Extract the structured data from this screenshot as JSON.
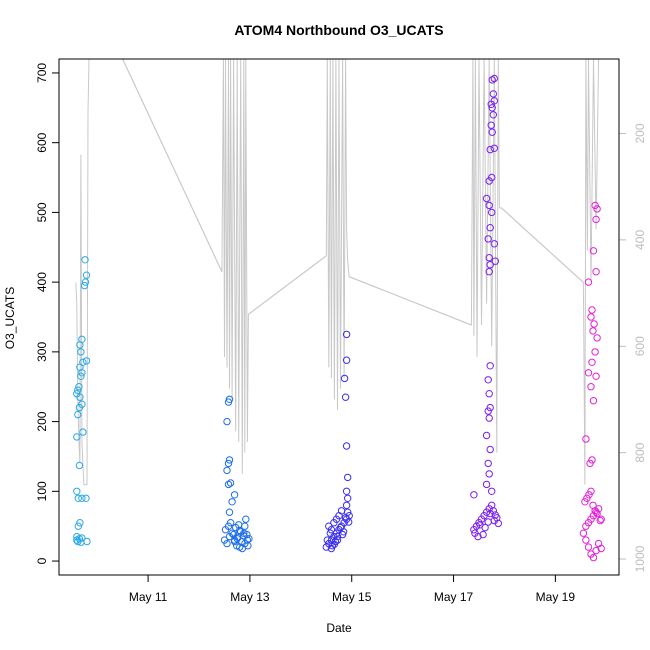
{
  "chart_data": {
    "type": "scatter",
    "title": "ATOM4 Northbound O3_UCATS",
    "xlabel": "Date",
    "ylabel": "O3_UCATS",
    "x_axis": {
      "min_day": 9.25,
      "max_day": 20.25,
      "ticks": [
        {
          "day": 11,
          "label": "May 11"
        },
        {
          "day": 13,
          "label": "May 13"
        },
        {
          "day": 15,
          "label": "May 15"
        },
        {
          "day": 17,
          "label": "May 17"
        },
        {
          "day": 19,
          "label": "May 19"
        }
      ]
    },
    "y_axis": {
      "min": -20,
      "max": 720,
      "ticks": [
        0,
        100,
        200,
        300,
        400,
        500,
        600,
        700
      ]
    },
    "y2_axis": {
      "top": 60,
      "bottom": 1030,
      "ticks": [
        200,
        400,
        600,
        800,
        1000
      ],
      "color": "#bdbdbd"
    },
    "grid": false,
    "legend": "none",
    "series": [
      {
        "color": "#29a9e8",
        "points": [
          [
            9.6,
            30
          ],
          [
            9.62,
            28
          ],
          [
            9.65,
            32
          ],
          [
            9.6,
            35
          ],
          [
            9.68,
            27
          ],
          [
            9.7,
            33
          ],
          [
            9.63,
            50
          ],
          [
            9.66,
            55
          ],
          [
            9.6,
            100
          ],
          [
            9.63,
            90
          ],
          [
            9.7,
            90
          ],
          [
            9.78,
            90
          ],
          [
            9.8,
            28
          ],
          [
            9.65,
            137
          ],
          [
            9.6,
            178
          ],
          [
            9.72,
            185
          ],
          [
            9.62,
            210
          ],
          [
            9.65,
            220
          ],
          [
            9.7,
            225
          ],
          [
            9.66,
            235
          ],
          [
            9.6,
            240
          ],
          [
            9.62,
            245
          ],
          [
            9.64,
            250
          ],
          [
            9.68,
            265
          ],
          [
            9.7,
            270
          ],
          [
            9.66,
            278
          ],
          [
            9.72,
            285
          ],
          [
            9.79,
            287
          ],
          [
            9.68,
            300
          ],
          [
            9.66,
            310
          ],
          [
            9.7,
            318
          ],
          [
            9.75,
            395
          ],
          [
            9.77,
            400
          ],
          [
            9.79,
            410
          ],
          [
            9.76,
            432
          ]
        ]
      },
      {
        "color": "#1e6ee8",
        "points": [
          [
            12.5,
            30
          ],
          [
            12.55,
            25
          ],
          [
            12.6,
            35
          ],
          [
            12.65,
            40
          ],
          [
            12.7,
            28
          ],
          [
            12.75,
            32
          ],
          [
            12.8,
            20
          ],
          [
            12.85,
            18
          ],
          [
            12.9,
            25
          ],
          [
            12.95,
            30
          ],
          [
            12.52,
            45
          ],
          [
            12.58,
            50
          ],
          [
            12.62,
            55
          ],
          [
            12.68,
            38
          ],
          [
            12.72,
            48
          ],
          [
            12.78,
            52
          ],
          [
            12.82,
            42
          ],
          [
            12.88,
            36
          ],
          [
            12.92,
            60
          ],
          [
            12.6,
            70
          ],
          [
            12.65,
            85
          ],
          [
            12.7,
            95
          ],
          [
            12.58,
            110
          ],
          [
            12.62,
            112
          ],
          [
            12.55,
            130
          ],
          [
            12.58,
            140
          ],
          [
            12.6,
            145
          ],
          [
            12.55,
            200
          ],
          [
            12.58,
            228
          ],
          [
            12.6,
            232
          ],
          [
            12.7,
            30
          ],
          [
            12.74,
            22
          ],
          [
            12.76,
            34
          ],
          [
            12.8,
            44
          ],
          [
            12.84,
            28
          ],
          [
            12.88,
            40
          ],
          [
            12.9,
            50
          ],
          [
            12.94,
            38
          ],
          [
            12.96,
            22
          ],
          [
            12.98,
            32
          ]
        ]
      },
      {
        "color": "#3b2ff0",
        "points": [
          [
            14.5,
            20
          ],
          [
            14.55,
            25
          ],
          [
            14.6,
            30
          ],
          [
            14.65,
            35
          ],
          [
            14.7,
            40
          ],
          [
            14.75,
            45
          ],
          [
            14.8,
            50
          ],
          [
            14.85,
            55
          ],
          [
            14.9,
            60
          ],
          [
            14.95,
            65
          ],
          [
            14.52,
            30
          ],
          [
            14.58,
            40
          ],
          [
            14.62,
            22
          ],
          [
            14.68,
            28
          ],
          [
            14.72,
            35
          ],
          [
            14.78,
            48
          ],
          [
            14.82,
            38
          ],
          [
            14.88,
            62
          ],
          [
            14.92,
            70
          ],
          [
            14.55,
            50
          ],
          [
            14.6,
            45
          ],
          [
            14.65,
            55
          ],
          [
            14.7,
            60
          ],
          [
            14.75,
            65
          ],
          [
            14.8,
            72
          ],
          [
            14.9,
            80
          ],
          [
            14.92,
            90
          ],
          [
            14.9,
            100
          ],
          [
            14.92,
            120
          ],
          [
            14.9,
            165
          ],
          [
            14.88,
            235
          ],
          [
            14.86,
            262
          ],
          [
            14.9,
            288
          ],
          [
            14.9,
            325
          ],
          [
            14.6,
            18
          ],
          [
            14.66,
            24
          ],
          [
            14.72,
            30
          ],
          [
            14.84,
            42
          ],
          [
            14.94,
            56
          ]
        ]
      },
      {
        "color": "#7a1ef0",
        "points": [
          [
            17.4,
            45
          ],
          [
            17.45,
            50
          ],
          [
            17.5,
            55
          ],
          [
            17.55,
            60
          ],
          [
            17.6,
            65
          ],
          [
            17.65,
            70
          ],
          [
            17.7,
            75
          ],
          [
            17.75,
            80
          ],
          [
            17.8,
            58
          ],
          [
            17.85,
            62
          ],
          [
            17.42,
            40
          ],
          [
            17.48,
            35
          ],
          [
            17.52,
            52
          ],
          [
            17.58,
            38
          ],
          [
            17.62,
            48
          ],
          [
            17.68,
            56
          ],
          [
            17.72,
            68
          ],
          [
            17.78,
            72
          ],
          [
            17.82,
            66
          ],
          [
            17.88,
            54
          ],
          [
            17.4,
            95
          ],
          [
            17.75,
            100
          ],
          [
            17.65,
            110
          ],
          [
            17.7,
            125
          ],
          [
            17.68,
            140
          ],
          [
            17.72,
            160
          ],
          [
            17.65,
            180
          ],
          [
            17.7,
            205
          ],
          [
            17.68,
            215
          ],
          [
            17.72,
            220
          ],
          [
            17.7,
            240
          ],
          [
            17.68,
            260
          ],
          [
            17.72,
            280
          ],
          [
            17.7,
            415
          ],
          [
            17.72,
            425
          ],
          [
            17.7,
            435
          ],
          [
            17.82,
            430
          ],
          [
            17.8,
            455
          ],
          [
            17.68,
            462
          ],
          [
            17.72,
            478
          ],
          [
            17.75,
            500
          ],
          [
            17.7,
            510
          ],
          [
            17.65,
            520
          ],
          [
            17.7,
            545
          ],
          [
            17.75,
            550
          ],
          [
            17.72,
            590
          ],
          [
            17.8,
            592
          ],
          [
            17.76,
            615
          ],
          [
            17.74,
            625
          ],
          [
            17.78,
            640
          ],
          [
            17.76,
            650
          ],
          [
            17.74,
            655
          ],
          [
            17.8,
            660
          ],
          [
            17.78,
            670
          ],
          [
            17.76,
            690
          ],
          [
            17.8,
            692
          ]
        ]
      },
      {
        "color": "#e620d8",
        "points": [
          [
            19.55,
            40
          ],
          [
            19.6,
            50
          ],
          [
            19.65,
            55
          ],
          [
            19.7,
            60
          ],
          [
            19.75,
            65
          ],
          [
            19.8,
            70
          ],
          [
            19.85,
            75
          ],
          [
            19.9,
            60
          ],
          [
            19.58,
            85
          ],
          [
            19.62,
            90
          ],
          [
            19.66,
            95
          ],
          [
            19.7,
            100
          ],
          [
            19.74,
            80
          ],
          [
            19.78,
            72
          ],
          [
            19.82,
            68
          ],
          [
            19.88,
            58
          ],
          [
            19.6,
            30
          ],
          [
            19.65,
            20
          ],
          [
            19.7,
            10
          ],
          [
            19.75,
            5
          ],
          [
            19.8,
            15
          ],
          [
            19.85,
            25
          ],
          [
            19.9,
            18
          ],
          [
            19.68,
            140
          ],
          [
            19.72,
            145
          ],
          [
            19.6,
            175
          ],
          [
            19.75,
            230
          ],
          [
            19.7,
            250
          ],
          [
            19.8,
            265
          ],
          [
            19.65,
            270
          ],
          [
            19.72,
            285
          ],
          [
            19.78,
            300
          ],
          [
            19.82,
            320
          ],
          [
            19.74,
            330
          ],
          [
            19.76,
            340
          ],
          [
            19.7,
            350
          ],
          [
            19.72,
            360
          ],
          [
            19.65,
            400
          ],
          [
            19.8,
            415
          ],
          [
            19.75,
            445
          ],
          [
            19.8,
            490
          ],
          [
            19.82,
            505
          ],
          [
            19.78,
            510
          ]
        ]
      }
    ],
    "pressure_trace": {
      "color": "#c8c8c8",
      "points": [
        [
          9.58,
          480
        ],
        [
          9.6,
          520
        ],
        [
          9.62,
          700
        ],
        [
          9.64,
          780
        ],
        [
          9.66,
          820
        ],
        [
          9.68,
          240
        ],
        [
          9.7,
          780
        ],
        [
          9.74,
          860
        ],
        [
          9.78,
          860
        ],
        [
          9.8,
          860
        ],
        [
          9.82,
          160
        ],
        [
          9.84,
          60
        ],
        [
          9.88,
          60
        ],
        [
          9.92,
          60
        ],
        [
          10.5,
          60
        ],
        [
          12.45,
          460
        ],
        [
          12.48,
          60
        ],
        [
          12.5,
          620
        ],
        [
          12.52,
          60
        ],
        [
          12.55,
          640
        ],
        [
          12.58,
          60
        ],
        [
          12.6,
          680
        ],
        [
          12.62,
          60
        ],
        [
          12.65,
          700
        ],
        [
          12.68,
          60
        ],
        [
          12.72,
          760
        ],
        [
          12.75,
          60
        ],
        [
          12.78,
          780
        ],
        [
          12.82,
          60
        ],
        [
          12.85,
          840
        ],
        [
          12.88,
          60
        ],
        [
          12.9,
          800
        ],
        [
          12.92,
          60
        ],
        [
          12.95,
          780
        ],
        [
          12.97,
          540
        ],
        [
          14.5,
          430
        ],
        [
          14.52,
          60
        ],
        [
          14.55,
          640
        ],
        [
          14.58,
          60
        ],
        [
          14.6,
          660
        ],
        [
          14.63,
          60
        ],
        [
          14.66,
          700
        ],
        [
          14.69,
          60
        ],
        [
          14.72,
          720
        ],
        [
          14.75,
          60
        ],
        [
          14.78,
          680
        ],
        [
          14.82,
          60
        ],
        [
          14.85,
          660
        ],
        [
          14.88,
          60
        ],
        [
          14.9,
          380
        ],
        [
          14.92,
          440
        ],
        [
          14.95,
          470
        ],
        [
          14.97,
          470
        ],
        [
          17.35,
          560
        ],
        [
          17.38,
          60
        ],
        [
          17.4,
          580
        ],
        [
          17.43,
          60
        ],
        [
          17.46,
          620
        ],
        [
          17.5,
          60
        ],
        [
          17.55,
          560
        ],
        [
          17.6,
          60
        ],
        [
          17.65,
          520
        ],
        [
          17.7,
          60
        ],
        [
          17.75,
          600
        ],
        [
          17.8,
          60
        ],
        [
          17.85,
          800
        ],
        [
          17.88,
          60
        ],
        [
          17.9,
          340
        ],
        [
          17.94,
          340
        ],
        [
          19.55,
          480
        ],
        [
          19.58,
          860
        ],
        [
          19.6,
          60
        ],
        [
          19.63,
          420
        ],
        [
          19.65,
          60
        ],
        [
          19.7,
          480
        ],
        [
          19.75,
          60
        ],
        [
          19.8,
          380
        ],
        [
          19.85,
          60
        ],
        [
          19.88,
          60
        ]
      ],
      "connectors": [
        [
          [
            10.5,
            60
          ],
          [
            12.45,
            460
          ]
        ],
        [
          [
            12.97,
            540
          ],
          [
            14.5,
            430
          ]
        ],
        [
          [
            14.97,
            470
          ],
          [
            17.35,
            560
          ]
        ],
        [
          [
            17.94,
            340
          ],
          [
            19.55,
            480
          ]
        ]
      ]
    }
  }
}
